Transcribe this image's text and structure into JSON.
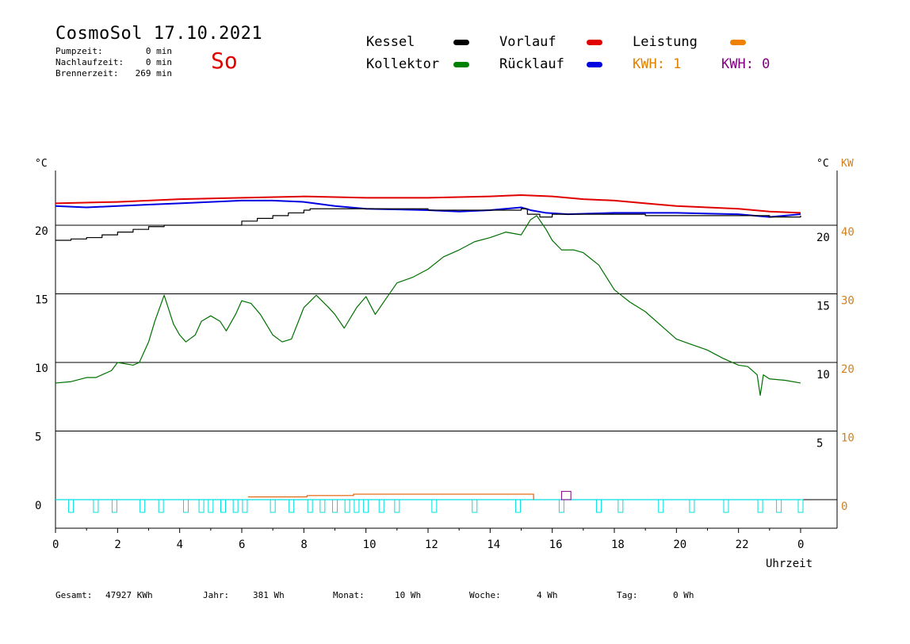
{
  "header": {
    "title": "CosmoSol 17.10.2021",
    "day": "So",
    "stats": [
      {
        "label": "Pumpzeit:",
        "value": "0 min"
      },
      {
        "label": "Nachlaufzeit:",
        "value": "0 min"
      },
      {
        "label": "Brennerzeit:",
        "value": "269 min"
      }
    ]
  },
  "legend": {
    "kessel": {
      "label": "Kessel",
      "color": "#000000"
    },
    "kollektor": {
      "label": "Kollektor",
      "color": "#008000"
    },
    "vorlauf": {
      "label": "Vorlauf",
      "color": "#e00000"
    },
    "ruecklauf": {
      "label": "Rücklauf",
      "color": "#0000e0"
    },
    "leistung": {
      "label": "Leistung",
      "color": "#f08000"
    },
    "kwh1": {
      "label": "KWH: 1",
      "color": "#e08000"
    },
    "kwh2": {
      "label": "KWH: 0",
      "color": "#800080"
    }
  },
  "footer": {
    "gesamt_label": "Gesamt:",
    "gesamt_value": "47927 KWh",
    "jahr_label": "Jahr:",
    "jahr_value": "381 Wh",
    "monat_label": "Monat:",
    "monat_value": "10 Wh",
    "woche_label": "Woche:",
    "woche_value": "4 Wh",
    "tag_label": "Tag:",
    "tag_value": "0 Wh"
  },
  "chart_data": {
    "type": "line",
    "xlabel": "Uhrzeit",
    "y_left_unit": "°C",
    "y_right_unit": "°C",
    "y_right2_unit": "KW",
    "xlim": [
      0,
      24
    ],
    "ylim": [
      -2,
      24
    ],
    "x_ticks": [
      "0",
      "2",
      "4",
      "6",
      "8",
      "10",
      "12",
      "14",
      "16",
      "18",
      "20",
      "22",
      "0"
    ],
    "y_left_ticks": [
      "0",
      "5",
      "10",
      "15",
      "20"
    ],
    "y_right_ticks": [
      "5",
      "10",
      "15",
      "20"
    ],
    "y_right2_ticks": [
      "0",
      "10",
      "20",
      "30",
      "40"
    ],
    "grid": "horizontal",
    "series": [
      {
        "name": "Vorlauf",
        "color": "#e00000",
        "x": [
          0,
          2,
          4,
          6,
          8,
          10,
          12,
          14,
          15,
          16,
          17,
          18,
          19,
          20,
          21,
          22,
          23,
          24
        ],
        "y": [
          21.6,
          21.7,
          21.9,
          22.0,
          22.1,
          22.0,
          22.0,
          22.1,
          22.2,
          22.1,
          21.9,
          21.8,
          21.6,
          21.4,
          21.3,
          21.2,
          21.0,
          20.9
        ]
      },
      {
        "name": "Rücklauf",
        "color": "#0000e0",
        "x": [
          0,
          1,
          2,
          3,
          4,
          5,
          6,
          7,
          8,
          9,
          10,
          12,
          13,
          14,
          15,
          15.3,
          15.8,
          16.5,
          18,
          20,
          22,
          23,
          24
        ],
        "y": [
          21.4,
          21.3,
          21.4,
          21.5,
          21.6,
          21.7,
          21.8,
          21.8,
          21.7,
          21.4,
          21.2,
          21.1,
          21.0,
          21.1,
          21.3,
          21.1,
          20.9,
          20.8,
          20.9,
          20.9,
          20.8,
          20.6,
          20.8
        ]
      },
      {
        "name": "Kessel",
        "color": "#000000",
        "x": [
          0,
          0.5,
          1,
          1.5,
          2,
          2.5,
          3,
          3.5,
          4,
          5,
          5.4,
          6,
          6.5,
          7,
          7.5,
          8,
          8.2,
          9,
          10,
          12,
          14,
          15,
          15.2,
          15.6,
          16,
          17,
          19,
          21,
          22,
          23,
          23.5,
          24
        ],
        "y": [
          18.9,
          19.0,
          19.1,
          19.3,
          19.5,
          19.7,
          19.9,
          20.0,
          20.0,
          20.0,
          20.0,
          20.3,
          20.5,
          20.7,
          20.9,
          21.1,
          21.2,
          21.2,
          21.2,
          21.1,
          21.1,
          21.2,
          20.8,
          20.6,
          20.8,
          20.8,
          20.7,
          20.7,
          20.7,
          20.6,
          20.6,
          20.7
        ]
      },
      {
        "name": "Kollektor",
        "color": "#007000",
        "x": [
          0,
          0.5,
          1,
          1.3,
          1.8,
          2,
          2.5,
          2.7,
          3,
          3.2,
          3.5,
          3.8,
          4,
          4.2,
          4.5,
          4.7,
          5,
          5.3,
          5.5,
          5.8,
          6,
          6.3,
          6.6,
          7,
          7.3,
          7.6,
          8,
          8.4,
          8.8,
          9,
          9.3,
          9.7,
          10,
          10.3,
          10.6,
          11,
          11.5,
          12,
          12.5,
          13,
          13.5,
          14,
          14.5,
          15,
          15.3,
          15.5,
          15.8,
          16,
          16.3,
          16.7,
          17,
          17.5,
          18,
          18.5,
          19,
          19.5,
          20,
          20.5,
          21,
          21.5,
          22,
          22.3,
          22.6,
          22.7,
          22.8,
          23,
          23.5,
          24
        ],
        "y": [
          8.5,
          8.6,
          8.9,
          8.9,
          9.4,
          10,
          9.8,
          10,
          11.5,
          13,
          14.9,
          12.8,
          12,
          11.5,
          12,
          13,
          13.4,
          13,
          12.3,
          13.5,
          14.5,
          14.3,
          13.5,
          12,
          11.5,
          11.7,
          14,
          14.9,
          14,
          13.5,
          12.5,
          14,
          14.8,
          13.5,
          14.5,
          15.8,
          16.2,
          16.8,
          17.7,
          18.2,
          18.8,
          19.1,
          19.5,
          19.3,
          20.4,
          20.7,
          19.7,
          18.9,
          18.2,
          18.2,
          18.0,
          17.1,
          15.3,
          14.4,
          13.7,
          12.7,
          11.7,
          11.3,
          10.9,
          10.3,
          9.8,
          9.7,
          9.1,
          7.6,
          9.1,
          8.8,
          8.7,
          8.5
        ]
      },
      {
        "name": "Pumpe",
        "color": "#00e0e0",
        "x": [
          0.5,
          1.3,
          1.9,
          2.8,
          3.4,
          4.2,
          4.7,
          5.0,
          5.4,
          5.8,
          6.1,
          7.0,
          7.6,
          8.2,
          8.6,
          9.0,
          9.4,
          9.7,
          10.0,
          10.5,
          11.0,
          12.2,
          13.5,
          14.9,
          16.3,
          17.5,
          18.2,
          19.5,
          20.5,
          21.6,
          22.7,
          23.3,
          24.0
        ],
        "y": [
          1,
          1,
          1,
          1,
          1,
          1,
          1,
          1,
          1,
          1,
          1,
          1,
          1,
          1,
          1,
          1,
          1,
          1,
          1,
          1,
          1,
          1,
          1,
          1,
          1,
          1,
          1,
          1,
          1,
          1,
          1,
          1,
          1
        ]
      },
      {
        "name": "Leistung",
        "color": "#e06000",
        "x": [
          6.2,
          6.5,
          8.1,
          9.2,
          9.6,
          10.0,
          13.5,
          15.3,
          15.4
        ],
        "y": [
          0.2,
          0.2,
          0.3,
          0.3,
          0.4,
          0.4,
          0.4,
          0.4,
          0
        ]
      },
      {
        "name": "KWH 0",
        "color": "#800080",
        "x": [
          16.3,
          16.6
        ],
        "y": [
          0.6,
          0.6
        ]
      }
    ]
  }
}
